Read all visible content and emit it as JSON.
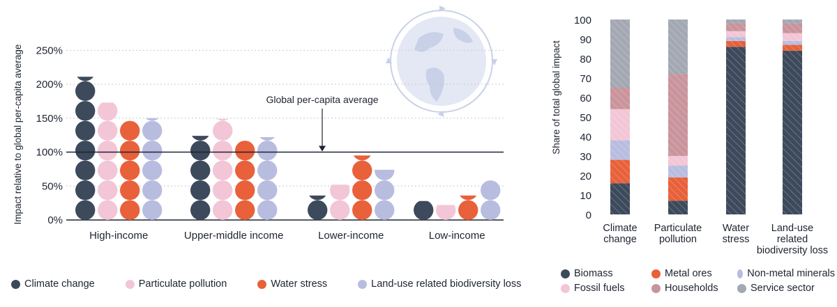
{
  "colors": {
    "climate_change": "#3d4a5c",
    "particulate_pollution": "#f2c6d6",
    "water_stress": "#e8613a",
    "biodiversity_loss": "#b8bde0",
    "biomass": "#3d4a5c",
    "metal_ores": "#e8613a",
    "non_metal_minerals": "#b8bde0",
    "fossil_fuels": "#f2c6d6",
    "households": "#c9949c",
    "service_sector": "#a3a8b3",
    "globe": "#c9d1e8"
  },
  "chart_data": [
    {
      "type": "bar",
      "ylabel": "Impact relative to global per-capita average",
      "ylim": [
        0,
        250
      ],
      "y_ticks": [
        "0%",
        "50%",
        "100%",
        "150%",
        "200%",
        "250%"
      ],
      "categories": [
        "High-income",
        "Upper-middle income",
        "Lower-income",
        "Low-income"
      ],
      "series": [
        {
          "name": "Climate change",
          "values": [
            211,
            124,
            36,
            28
          ]
        },
        {
          "name": "Particulate pollution",
          "values": [
            173,
            149,
            52,
            22
          ]
        },
        {
          "name": "Water stress",
          "values": [
            147,
            117,
            95,
            36
          ]
        },
        {
          "name": "Land-use related biodiversity loss",
          "values": [
            150,
            122,
            74,
            60
          ]
        }
      ],
      "reference_line": {
        "value": 100,
        "label": "Global per-capita average"
      },
      "grid": true,
      "legend_position": "bottom"
    },
    {
      "type": "bar",
      "stacked": true,
      "ylabel": "Share of total global impact",
      "ylim": [
        0,
        100
      ],
      "y_ticks": [
        "0",
        "10",
        "20",
        "30",
        "40",
        "50",
        "60",
        "70",
        "80",
        "90",
        "100"
      ],
      "categories": [
        [
          "Climate",
          "change"
        ],
        [
          "Particulate",
          "pollution"
        ],
        [
          "Water",
          "stress"
        ],
        [
          "Land-use",
          "related",
          "biodiversity loss"
        ]
      ],
      "series": [
        {
          "name": "Biomass",
          "values": [
            16,
            7,
            86,
            84
          ]
        },
        {
          "name": "Metal ores",
          "values": [
            12,
            12,
            3,
            3
          ]
        },
        {
          "name": "Non-metal minerals",
          "values": [
            10,
            6,
            2,
            2
          ]
        },
        {
          "name": "Fossil fuels",
          "values": [
            16,
            5,
            3,
            4
          ]
        },
        {
          "name": "Households",
          "values": [
            11,
            42,
            4,
            5
          ]
        },
        {
          "name": "Service sector",
          "values": [
            35,
            28,
            2,
            2
          ]
        }
      ],
      "legend_position": "bottom"
    }
  ]
}
